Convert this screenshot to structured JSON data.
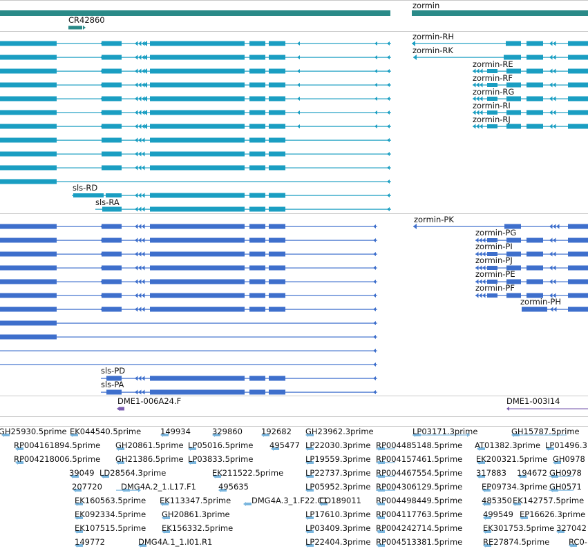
{
  "colors": {
    "gene": "#2a8a88",
    "transcript": "#1a9ec2",
    "protein": "#3e6fcc",
    "clone_end": "#7a5caf",
    "est": "#7ab6de"
  },
  "gene_track": {
    "cr42860_label": "CR42860",
    "zormin_label": "zormin"
  },
  "transcript_track": {
    "sls_rd_label": "sls-RD",
    "sls_ra_label": "sls-RA",
    "zormin_labels": [
      "zormin-RH",
      "zormin-RK",
      "zormin-RE",
      "zormin-RF",
      "zormin-RG",
      "zormin-RI",
      "zormin-RJ"
    ]
  },
  "protein_track": {
    "sls_pd_label": "sls-PD",
    "sls_pa_label": "sls-PA",
    "zormin_labels": [
      "zormin-PK",
      "zormin-PG",
      "zormin-PI",
      "zormin-PJ",
      "zormin-PE",
      "zormin-PF",
      "zormin-PH"
    ]
  },
  "clone_track": {
    "labels": [
      "DME1-006A24.F",
      "DME1-003I14"
    ]
  },
  "est_track": {
    "labels": [
      "GH25930.5prime",
      "EK044540.5prime",
      "149934",
      "329860",
      "192682",
      "GH23962.3prime",
      "LP03171.3prime",
      "GH15787.5prime",
      "RP004161894.5prime",
      "GH20861.5prime",
      "LP05016.5prime",
      "495477",
      "LP22030.3prime",
      "RP004485148.5prime",
      "AT01382.3prime",
      "LP01496.3",
      "RP004218006.5prime",
      "GH21386.5prime",
      "LP03833.5prime",
      "LP19559.3prime",
      "RP004157461.5prime",
      "EK200321.5prime",
      "GH0978",
      "39049",
      "LD28564.3prime",
      "EK211522.5prime",
      "LP22737.3prime",
      "RP004467554.5prime",
      "317883",
      "194672",
      "GH0978",
      "207720",
      "DMG4A.2_1.L17.F1",
      "495635",
      "LP05952.3prime",
      "RP004306129.5prime",
      "EP09734.3prime",
      "GH0571",
      "EK160563.5prime",
      "EK113347.5prime",
      "DMG4A.3_1.F22.C1",
      "CO189011",
      "RP004498449.5prime",
      "485350",
      "EK142757.5prime",
      "EK092334.5prime",
      "GH20861.3prime",
      "LP17610.3prime",
      "RP004117763.5prime",
      "499549",
      "EP16626.3prime",
      "EK107515.5prime",
      "EK156332.5prime",
      "LP03409.3prime",
      "RP004242714.5prime",
      "EK301753.5prime",
      "327042",
      "149772",
      "DMG4A.1_1.I01.R1",
      "LP22404.3prime",
      "RP004513381.5prime",
      "RE27874.5prime",
      "RC0-"
    ]
  }
}
